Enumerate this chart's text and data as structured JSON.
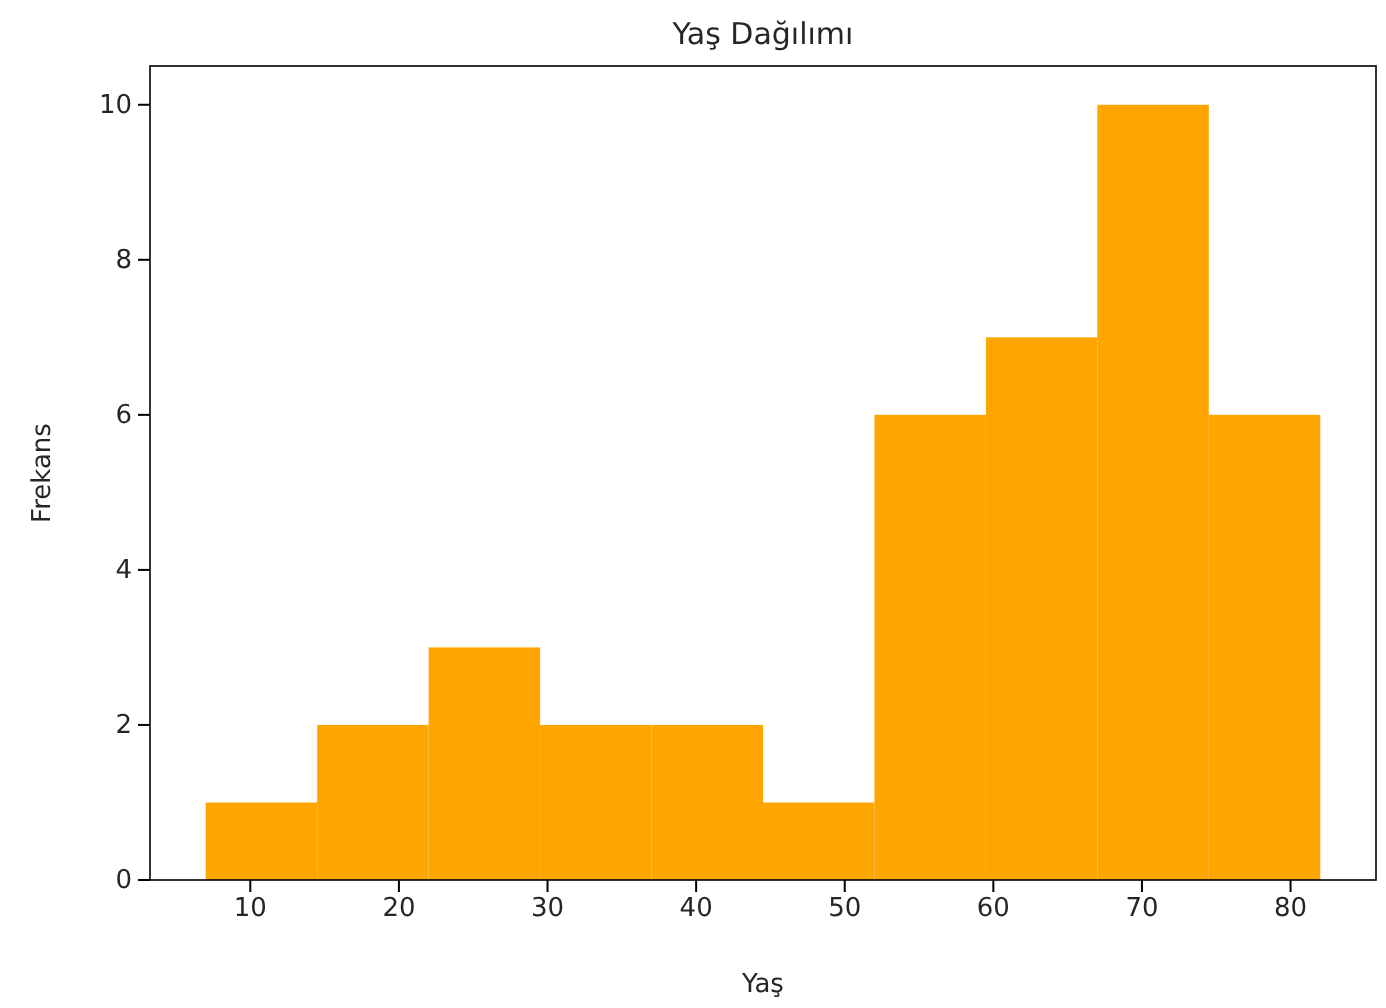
{
  "chart_data": {
    "type": "histogram",
    "title": "Yaş Dağılımı",
    "xlabel": "Yaş",
    "ylabel": "Frekans",
    "bins": [
      7,
      14.5,
      22,
      29.5,
      37,
      44.5,
      52,
      59.5,
      67,
      74.5,
      82
    ],
    "values": [
      1,
      2,
      3,
      2,
      2,
      1,
      6,
      7,
      10,
      6
    ],
    "color": "#ffa500",
    "xlim": [
      3.25,
      85.75
    ],
    "xticks": [
      10,
      20,
      30,
      40,
      50,
      60,
      70,
      80
    ],
    "ylim": [
      0,
      10.5
    ],
    "yticks": [
      0,
      2,
      4,
      6,
      8,
      10
    ],
    "grid": false
  }
}
